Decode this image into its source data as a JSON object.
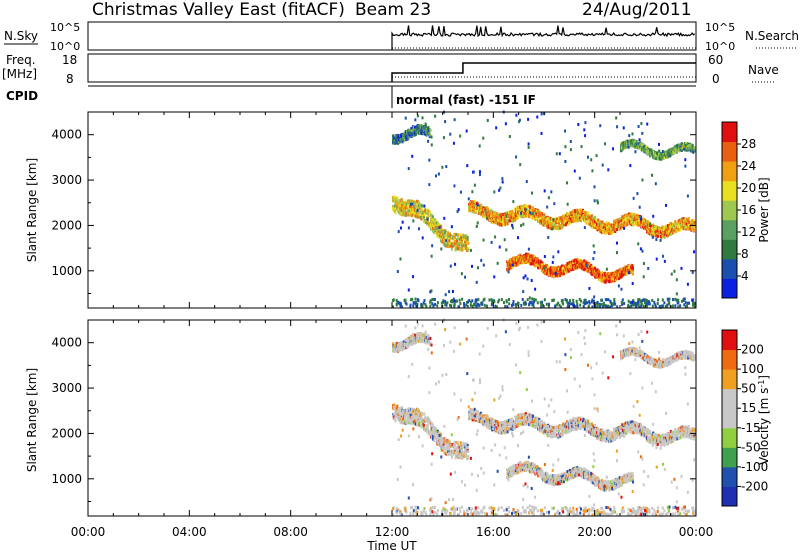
{
  "header": {
    "station": "Christmas Valley East (fitACF)",
    "beam": "Beam 23",
    "date": "24/Aug/2011"
  },
  "strip_labels": {
    "nsky": "N.Sky",
    "nsky_ticks": [
      "10^5",
      "10^0"
    ],
    "nsearch": "N.Search",
    "freq": "Freq.",
    "freq_unit": "[MHz]",
    "freq_ticks": [
      "18",
      "8"
    ],
    "nave": "Nave",
    "nave_ticks": [
      "60",
      "0"
    ],
    "nsky_right_ticks": [
      "10^5",
      "10^0"
    ],
    "cpid": "CPID",
    "cpid_text": "normal (fast) -151 IF"
  },
  "colors": {
    "power_scale": [
      "#0a1fe0",
      "#1a4fb0",
      "#2f7a3f",
      "#5aa060",
      "#9ec850",
      "#e8e020",
      "#f0a010",
      "#e86010",
      "#e01010"
    ],
    "velocity_scale": [
      "#e01010",
      "#f06a10",
      "#f0a020",
      "#c8c8c8",
      "#c8c8c8",
      "#90d040",
      "#40a050",
      "#2050b0",
      "#2030b0"
    ]
  },
  "chart_data": [
    {
      "type": "heatmap",
      "name": "power",
      "ylabel": "Slant Range [km]",
      "xlabel": "Time UT",
      "xticks": [
        "00:00",
        "04:00",
        "08:00",
        "12:00",
        "16:00",
        "20:00",
        "00:00"
      ],
      "ylim": [
        180,
        4500
      ],
      "yticks": [
        1000,
        2000,
        3000,
        4000
      ],
      "colorbar_label": "Power [dB]",
      "colorbar_ticks": [
        "4",
        "8",
        "12",
        "16",
        "20",
        "24",
        "28"
      ],
      "data_start_hour": 12,
      "echo_bands": [
        {
          "t_start": 12.0,
          "t_end": 15.0,
          "range_start": 2600,
          "range_end": 1500,
          "width": 350,
          "level": 5
        },
        {
          "t_start": 15.0,
          "t_end": 24.0,
          "range_start": 2300,
          "range_end": 1900,
          "width": 250,
          "level": 6
        },
        {
          "t_start": 16.5,
          "t_end": 21.5,
          "range_start": 1200,
          "range_end": 900,
          "width": 200,
          "level": 7
        },
        {
          "t_start": 12.0,
          "t_end": 13.5,
          "range_start": 4000,
          "range_end": 4000,
          "width": 200,
          "level": 2
        },
        {
          "t_start": 21.0,
          "t_end": 24.0,
          "range_start": 3700,
          "range_end": 3600,
          "width": 150,
          "level": 3
        }
      ]
    },
    {
      "type": "heatmap",
      "name": "velocity",
      "ylabel": "Slant Range [km]",
      "xlabel": "Time UT",
      "xticks": [
        "00:00",
        "04:00",
        "08:00",
        "12:00",
        "16:00",
        "20:00",
        "00:00"
      ],
      "ylim": [
        180,
        4500
      ],
      "yticks": [
        1000,
        2000,
        3000,
        4000
      ],
      "colorbar_label": "Velocity [m s^-1]",
      "colorbar_ticks": [
        "200",
        "100",
        "50",
        "15",
        "-15",
        "-50",
        "-100",
        "-200"
      ]
    }
  ],
  "axis": {
    "xlabel": "Time UT"
  }
}
